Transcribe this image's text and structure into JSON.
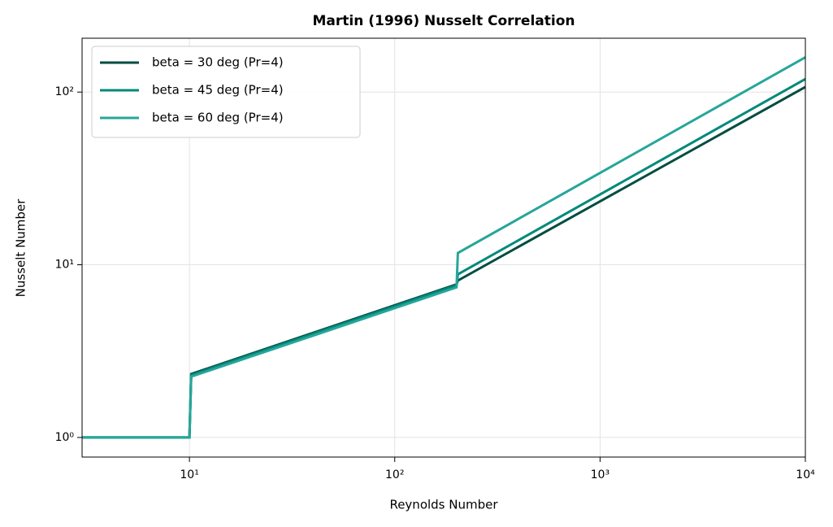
{
  "chart_data": {
    "type": "line",
    "title": "Martin (1996) Nusselt Correlation",
    "x_label": "Reynolds Number",
    "y_label": "Nusselt Number",
    "x": [
      3,
      10,
      10.2,
      200,
      203,
      10000
    ],
    "series": [
      {
        "name": "beta = 30 deg (Pr=4)",
        "color": "#004d40",
        "values": [
          1,
          1,
          2.33,
          7.7,
          8.1,
          107
        ]
      },
      {
        "name": "beta = 45 deg (Pr=4)",
        "color": "#00897b",
        "values": [
          1,
          1,
          2.3,
          7.6,
          8.8,
          119
        ]
      },
      {
        "name": "beta = 60 deg (Pr=4)",
        "color": "#26a69a",
        "values": [
          1,
          1,
          2.25,
          7.4,
          11.7,
          159
        ]
      }
    ],
    "xlim": [
      3,
      10000
    ],
    "ylim": [
      0.77,
      205
    ],
    "xticks": [
      {
        "value": 10,
        "label": "10¹"
      },
      {
        "value": 100,
        "label": "10²"
      },
      {
        "value": 1000,
        "label": "10³"
      },
      {
        "value": 10000,
        "label": "10⁴"
      }
    ],
    "yticks": [
      {
        "value": 1,
        "label": "10⁰"
      },
      {
        "value": 10,
        "label": "10¹"
      },
      {
        "value": 100,
        "label": "10²"
      }
    ],
    "xscale": "log",
    "yscale": "log",
    "grid": true,
    "legend": "upper left"
  }
}
